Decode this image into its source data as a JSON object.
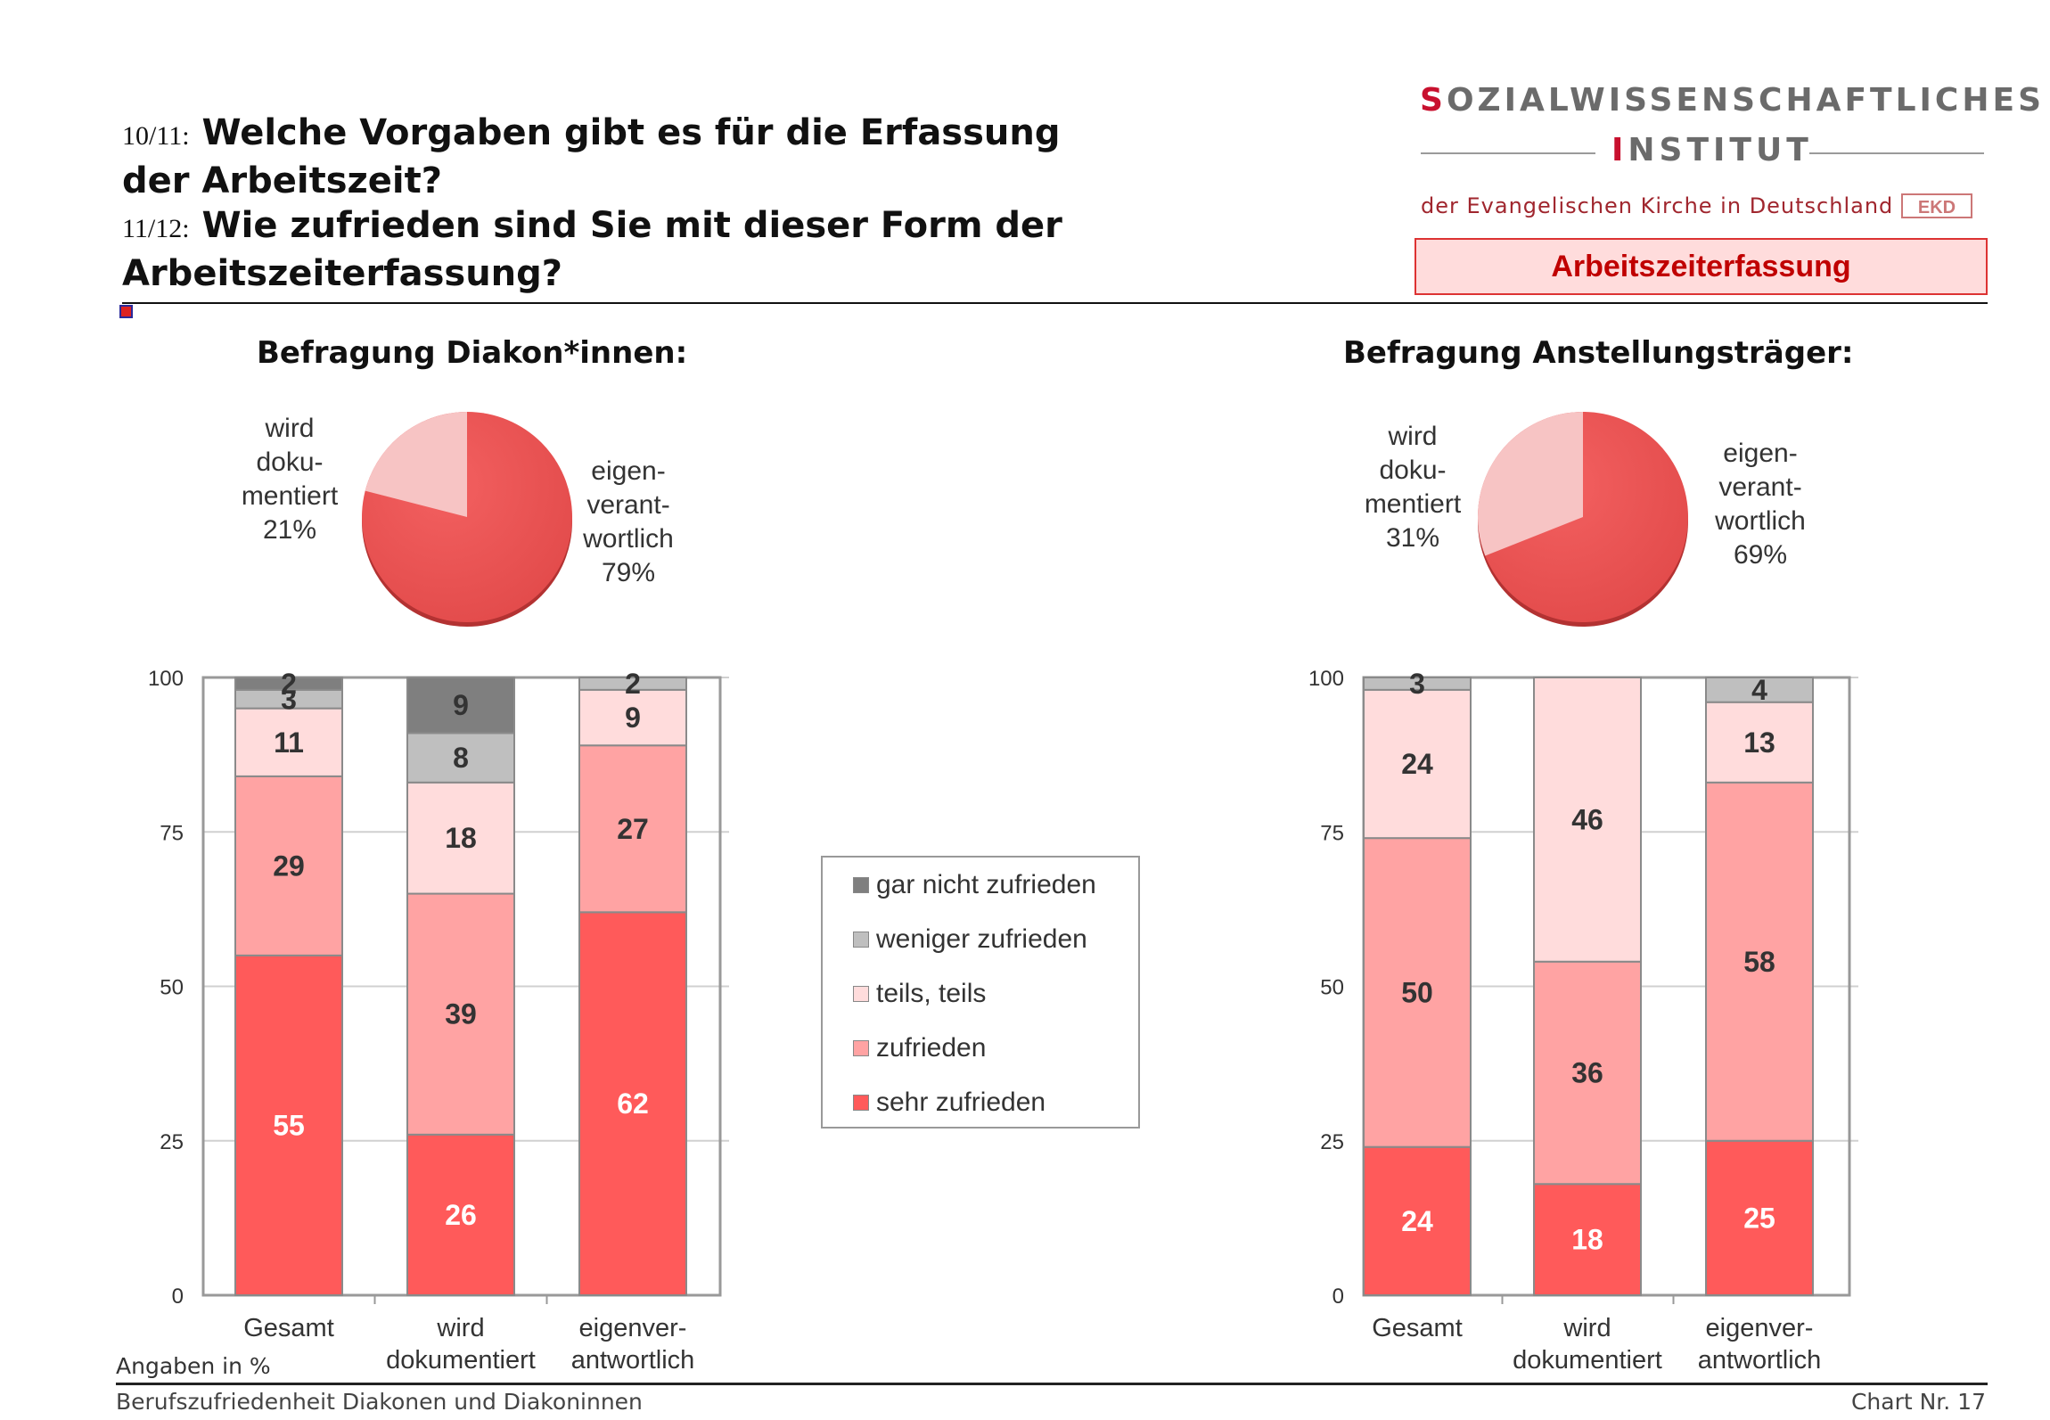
{
  "header": {
    "q1_num": "10/11:",
    "q1_text_line1": "Welche Vorgaben gibt es für die Erfassung",
    "q1_text_line2": "der Arbeitszeit?",
    "q2_num": "11/12:",
    "q2_text_line1": "Wie zufrieden sind Sie mit dieser Form der",
    "q2_text_line2": "Arbeitszeiterfassung?"
  },
  "logo": {
    "line1_first": "S",
    "line1_rest": "OZIALWISSENSCHAFTLICHES",
    "line2_first": "I",
    "line2_rest": "NSTITUT",
    "line3": "der Evangelischen Kirche in Deutschland",
    "badge": "EKD"
  },
  "topic_label": "Arbeitszeiterfassung",
  "footer": {
    "note": "Angaben in %",
    "left": "Berufszufriedenheit Diakonen und Diakoninnen",
    "right": "Chart Nr. 17"
  },
  "colors": {
    "gar_nicht": "#7f7f7f",
    "weniger": "#bfbfbf",
    "teils": "#ffdcdc",
    "zufrieden": "#ffa3a3",
    "sehr": "#ff5a5a",
    "pie_main": "#ee5555",
    "pie_light": "#f7c4c4",
    "topic_text": "#c00000"
  },
  "legend": [
    {
      "key": "gar_nicht",
      "label": "gar nicht zufrieden"
    },
    {
      "key": "weniger",
      "label": "weniger zufrieden"
    },
    {
      "key": "teils",
      "label": "teils, teils"
    },
    {
      "key": "zufrieden",
      "label": "zufrieden"
    },
    {
      "key": "sehr",
      "label": "sehr zufrieden"
    }
  ],
  "chart_data": [
    {
      "type": "pie",
      "title": "Befragung Diakon*innen:",
      "slices": [
        {
          "label": "wird dokumentiert",
          "label_lines": [
            "wird",
            "doku-",
            "mentiert",
            "21%"
          ],
          "value": 21
        },
        {
          "label": "eigenverantwortlich",
          "label_lines": [
            "eigen-",
            "verant-",
            "wortlich",
            "79%"
          ],
          "value": 79
        }
      ]
    },
    {
      "type": "bar",
      "stacked": true,
      "title": "Befragung Diakon*innen:",
      "categories": [
        "Gesamt",
        "wird dokumentiert",
        "eigenverantwortlich"
      ],
      "category_lines": [
        [
          "Gesamt"
        ],
        [
          "wird",
          "dokumentiert"
        ],
        [
          "eigenver-",
          "antwortlich"
        ]
      ],
      "ylim": [
        0,
        100
      ],
      "yticks": [
        0,
        25,
        50,
        75,
        100
      ],
      "grid": true,
      "series": [
        {
          "name": "sehr zufrieden",
          "key": "sehr",
          "values": [
            55,
            26,
            62
          ]
        },
        {
          "name": "zufrieden",
          "key": "zufrieden",
          "values": [
            29,
            39,
            27
          ]
        },
        {
          "name": "teils, teils",
          "key": "teils",
          "values": [
            11,
            18,
            9
          ]
        },
        {
          "name": "weniger zufrieden",
          "key": "weniger",
          "values": [
            3,
            8,
            2
          ]
        },
        {
          "name": "gar nicht zufrieden",
          "key": "gar_nicht",
          "values": [
            2,
            9,
            0
          ]
        }
      ]
    },
    {
      "type": "pie",
      "title": "Befragung Anstellungsträger:",
      "slices": [
        {
          "label": "wird dokumentiert",
          "label_lines": [
            "wird",
            "doku-",
            "mentiert",
            "31%"
          ],
          "value": 31
        },
        {
          "label": "eigenverantwortlich",
          "label_lines": [
            "eigen-",
            "verant-",
            "wortlich",
            "69%"
          ],
          "value": 69
        }
      ]
    },
    {
      "type": "bar",
      "stacked": true,
      "title": "Befragung Anstellungsträger:",
      "categories": [
        "Gesamt",
        "wird dokumentiert",
        "eigenverantwortlich"
      ],
      "category_lines": [
        [
          "Gesamt"
        ],
        [
          "wird",
          "dokumentiert"
        ],
        [
          "eigenver-",
          "antwortlich"
        ]
      ],
      "ylim": [
        0,
        100
      ],
      "yticks": [
        0,
        25,
        50,
        75,
        100
      ],
      "grid": true,
      "series": [
        {
          "name": "sehr zufrieden",
          "key": "sehr",
          "values": [
            24,
            18,
            25
          ]
        },
        {
          "name": "zufrieden",
          "key": "zufrieden",
          "values": [
            50,
            36,
            58
          ]
        },
        {
          "name": "teils, teils",
          "key": "teils",
          "values": [
            24,
            46,
            13
          ]
        },
        {
          "name": "weniger zufrieden",
          "key": "weniger",
          "values": [
            3,
            0,
            4
          ]
        },
        {
          "name": "gar nicht zufrieden",
          "key": "gar_nicht",
          "values": [
            0,
            0,
            0
          ]
        }
      ]
    }
  ]
}
